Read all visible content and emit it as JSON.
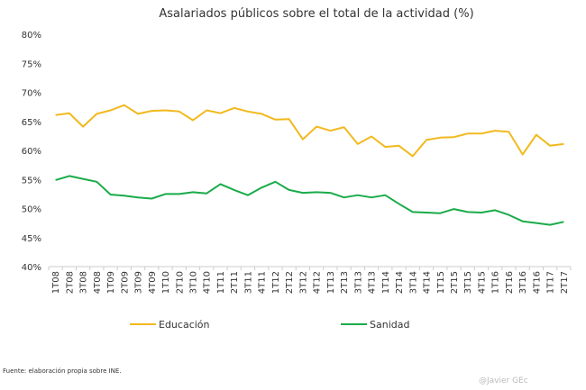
{
  "chart_data": {
    "type": "line",
    "title": "Asalariados públicos sobre el total de la actividad (%)",
    "xlabel": "",
    "ylabel": "",
    "ylim": [
      40,
      80
    ],
    "y_ticks": [
      "40%",
      "45%",
      "50%",
      "55%",
      "60%",
      "65%",
      "70%",
      "75%",
      "80%"
    ],
    "y_tick_values": [
      40,
      45,
      50,
      55,
      60,
      65,
      70,
      75,
      80
    ],
    "grid": false,
    "legend_position": "bottom",
    "categories": [
      "1T08",
      "2T08",
      "3T08",
      "4T08",
      "1T09",
      "2T09",
      "3T09",
      "4T09",
      "1T10",
      "2T10",
      "3T10",
      "4T10",
      "1T11",
      "2T11",
      "3T11",
      "4T11",
      "1T12",
      "2T12",
      "3T12",
      "4T12",
      "1T13",
      "2T13",
      "3T13",
      "4T13",
      "1T14",
      "2T14",
      "3T14",
      "4T14",
      "1T15",
      "2T15",
      "3T15",
      "4T15",
      "1T16",
      "2T16",
      "3T16",
      "4T16",
      "1T17",
      "2T17"
    ],
    "series": [
      {
        "name": "Educación",
        "color": "#f2b91d",
        "values": [
          66.1,
          66.4,
          64.1,
          66.3,
          66.9,
          67.8,
          66.3,
          66.8,
          66.9,
          66.7,
          65.2,
          66.9,
          66.4,
          67.3,
          66.7,
          66.3,
          65.3,
          65.4,
          61.9,
          64.1,
          63.4,
          64.0,
          61.1,
          62.4,
          60.6,
          60.8,
          59.0,
          61.8,
          62.2,
          62.3,
          62.9,
          62.9,
          63.4,
          63.2,
          59.3,
          62.7,
          60.8,
          61.1
        ]
      },
      {
        "name": "Sanidad",
        "color": "#1aab4a",
        "values": [
          54.9,
          55.6,
          55.1,
          54.6,
          52.4,
          52.2,
          51.9,
          51.7,
          52.5,
          52.5,
          52.8,
          52.6,
          54.2,
          53.2,
          52.3,
          53.6,
          54.6,
          53.2,
          52.7,
          52.8,
          52.7,
          51.9,
          52.3,
          51.9,
          52.3,
          50.8,
          49.4,
          49.3,
          49.2,
          49.9,
          49.4,
          49.3,
          49.7,
          48.9,
          47.8,
          47.5,
          47.2,
          47.7
        ]
      }
    ]
  },
  "footer": {
    "source": "Fuente: elaboración propia sobre INE.",
    "signature": "@Javier GEc"
  }
}
